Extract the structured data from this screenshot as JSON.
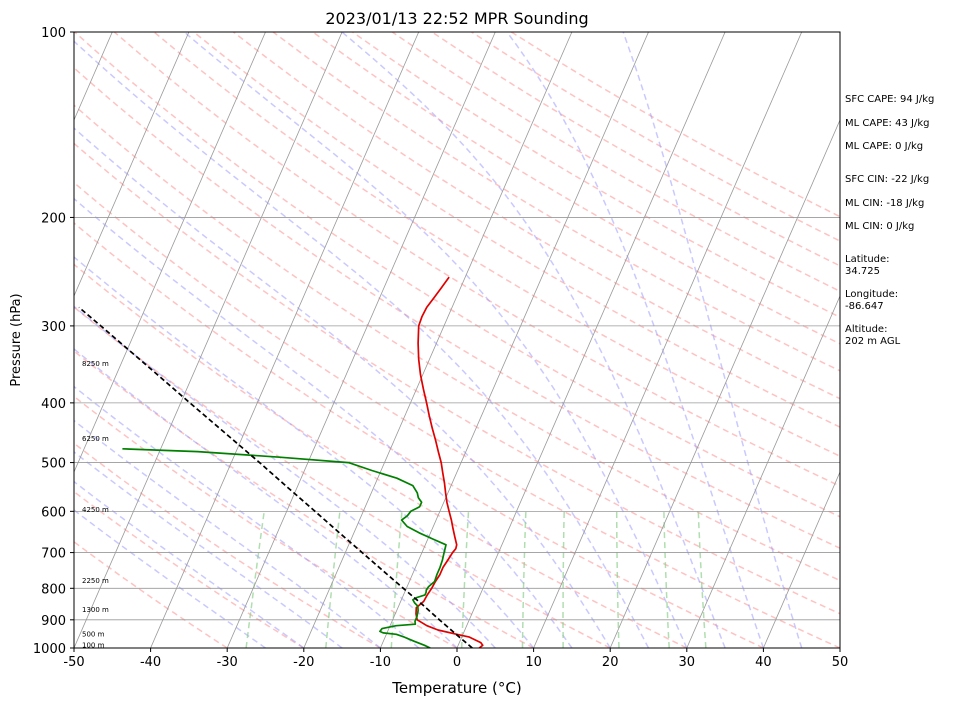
{
  "chart_data": {
    "type": "skew-t log-p sounding",
    "title": "2023/01/13 22:52 MPR Sounding",
    "xlabel": "Temperature (°C)",
    "ylabel": "Pressure (hPa)",
    "xlim": [
      -50,
      50
    ],
    "ylim": [
      1000,
      100
    ],
    "y_scale": "log",
    "grid": true,
    "x_ticks": [
      -50,
      -40,
      -30,
      -20,
      -10,
      0,
      10,
      20,
      30,
      40,
      50
    ],
    "y_ticks": [
      100,
      200,
      300,
      400,
      500,
      600,
      700,
      800,
      900,
      1000
    ],
    "height_labels": [
      {
        "text": "100 m",
        "p": 990
      },
      {
        "text": "500 m",
        "p": 950
      },
      {
        "text": "1300 m",
        "p": 868
      },
      {
        "text": "2250 m",
        "p": 778
      },
      {
        "text": "4250 m",
        "p": 597
      },
      {
        "text": "6250 m",
        "p": 458
      },
      {
        "text": "8250 m",
        "p": 346
      }
    ],
    "series": [
      {
        "name": "Temperature",
        "color": "#e00000",
        "points": [
          [
            1000,
            2.9
          ],
          [
            990,
            3.2
          ],
          [
            980,
            2.8
          ],
          [
            960,
            1.0
          ],
          [
            950,
            -0.8
          ],
          [
            935,
            -3.5
          ],
          [
            920,
            -5.2
          ],
          [
            900,
            -6.8
          ],
          [
            880,
            -7.3
          ],
          [
            860,
            -7.6
          ],
          [
            840,
            -7.0
          ],
          [
            820,
            -6.9
          ],
          [
            800,
            -6.7
          ],
          [
            780,
            -6.6
          ],
          [
            760,
            -6.4
          ],
          [
            740,
            -6.4
          ],
          [
            720,
            -6.2
          ],
          [
            700,
            -6.0
          ],
          [
            690,
            -5.8
          ],
          [
            680,
            -5.9
          ],
          [
            660,
            -6.6
          ],
          [
            640,
            -7.3
          ],
          [
            620,
            -8.0
          ],
          [
            600,
            -8.8
          ],
          [
            580,
            -9.6
          ],
          [
            560,
            -10.3
          ],
          [
            540,
            -11.0
          ],
          [
            520,
            -11.8
          ],
          [
            500,
            -12.6
          ],
          [
            480,
            -13.6
          ],
          [
            460,
            -14.6
          ],
          [
            440,
            -15.7
          ],
          [
            420,
            -16.8
          ],
          [
            400,
            -17.9
          ],
          [
            380,
            -19.1
          ],
          [
            360,
            -20.3
          ],
          [
            340,
            -21.4
          ],
          [
            320,
            -22.4
          ],
          [
            300,
            -23.3
          ],
          [
            290,
            -23.4
          ],
          [
            280,
            -23.3
          ],
          [
            270,
            -22.9
          ],
          [
            260,
            -22.5
          ],
          [
            250,
            -22.1
          ]
        ]
      },
      {
        "name": "Dewpoint",
        "color": "#008000",
        "points": [
          [
            1000,
            -3.5
          ],
          [
            990,
            -4.4
          ],
          [
            975,
            -6.0
          ],
          [
            960,
            -7.5
          ],
          [
            950,
            -8.7
          ],
          [
            945,
            -10.5
          ],
          [
            940,
            -11.0
          ],
          [
            930,
            -10.9
          ],
          [
            920,
            -9.2
          ],
          [
            915,
            -6.8
          ],
          [
            905,
            -7.0
          ],
          [
            890,
            -7.0
          ],
          [
            870,
            -7.2
          ],
          [
            855,
            -7.5
          ],
          [
            845,
            -8.1
          ],
          [
            835,
            -8.5
          ],
          [
            828,
            -8.1
          ],
          [
            820,
            -7.2
          ],
          [
            812,
            -7.2
          ],
          [
            805,
            -7.3
          ],
          [
            795,
            -7.2
          ],
          [
            780,
            -6.7
          ],
          [
            760,
            -6.8
          ],
          [
            740,
            -6.8
          ],
          [
            720,
            -6.9
          ],
          [
            700,
            -7.1
          ],
          [
            680,
            -7.3
          ],
          [
            665,
            -9.4
          ],
          [
            650,
            -11.5
          ],
          [
            635,
            -13.4
          ],
          [
            620,
            -14.5
          ],
          [
            610,
            -14.0
          ],
          [
            600,
            -13.8
          ],
          [
            590,
            -12.9
          ],
          [
            580,
            -12.9
          ],
          [
            570,
            -13.6
          ],
          [
            560,
            -14.0
          ],
          [
            545,
            -15.0
          ],
          [
            530,
            -17.5
          ],
          [
            515,
            -21.2
          ],
          [
            500,
            -24.7
          ],
          [
            490,
            -34.0
          ],
          [
            480,
            -45.0
          ],
          [
            475,
            -55.0
          ]
        ]
      },
      {
        "name": "Parcel",
        "color": "#000000",
        "points": [
          [
            1000,
            2.0
          ],
          [
            950,
            -0.9
          ],
          [
            900,
            -3.9
          ],
          [
            850,
            -7.0
          ],
          [
            800,
            -10.4
          ],
          [
            750,
            -14.0
          ],
          [
            700,
            -17.8
          ],
          [
            650,
            -21.9
          ],
          [
            600,
            -26.3
          ],
          [
            550,
            -31.1
          ],
          [
            500,
            -36.3
          ],
          [
            450,
            -42.2
          ],
          [
            400,
            -48.8
          ],
          [
            350,
            -56.2
          ],
          [
            300,
            -64.8
          ],
          [
            280,
            -68.7
          ]
        ]
      }
    ]
  },
  "stats": {
    "sfc_cape": "SFC CAPE: 94 J/kg",
    "ml_cape_1": "ML CAPE: 43 J/kg",
    "ml_cape_2": "ML CAPE: 0 J/kg",
    "sfc_cin": "SFC CIN: -22 J/kg",
    "ml_cin_1": "ML CIN: -18 J/kg",
    "ml_cin_2": "ML CIN: 0 J/kg",
    "latitude_label": "Latitude:",
    "latitude_value": "34.725",
    "longitude_label": "Longitude:",
    "longitude_value": "-86.647",
    "altitude_label": "Altitude:",
    "altitude_value": "202 m AGL"
  },
  "colors": {
    "temperature": "#e00000",
    "dewpoint": "#008000",
    "parcel": "#000000",
    "dry_adiabat": "#ff9a9a",
    "moist_adiabat": "#9d9dff",
    "mixing_ratio": "#8fd08f",
    "isotherm": "#999999",
    "isobar": "#999999"
  }
}
